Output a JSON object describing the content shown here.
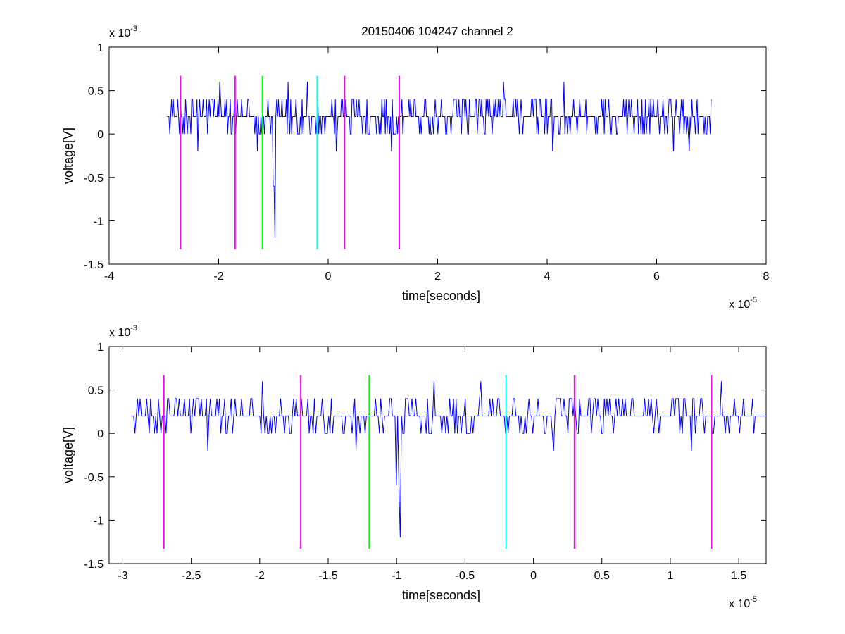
{
  "figure": {
    "title": "20150406 104247 channel 2"
  },
  "chart_data": [
    {
      "type": "line",
      "xlabel": "time[seconds]",
      "ylabel": "voltage[V]",
      "x_exponent_label": "x 10",
      "x_exponent": "-5",
      "y_exponent_label": "x 10",
      "y_exponent": "-3",
      "xlim": [
        -4e-05,
        8e-05
      ],
      "ylim": [
        -0.0015,
        0.001
      ],
      "xticks": [
        -4e-05,
        -2e-05,
        0,
        2e-05,
        4e-05,
        6e-05,
        8e-05
      ],
      "xtick_labels": [
        "-4",
        "-2",
        "0",
        "2",
        "4",
        "6",
        "8"
      ],
      "yticks": [
        -0.0015,
        -0.001,
        -0.0005,
        0,
        0.0005,
        0.001
      ],
      "ytick_labels": [
        "-1.5",
        "-1",
        "-0.5",
        "0",
        "0.5",
        "1"
      ],
      "grid": false,
      "series": [
        {
          "color": "#0000ff",
          "x_start": -2.94e-05,
          "x_end": 7e-05,
          "baseline": 0.0002,
          "quantum": 0.0002,
          "noise_levels": [
            0,
            0.0002,
            0.0004
          ],
          "features": [
            {
              "x": -2.38e-05,
              "y": -0.0002
            },
            {
              "x": -1.98e-05,
              "y": 0.0006
            },
            {
              "x": -1.3e-05,
              "y": -0.0002
            },
            {
              "x": -1e-05,
              "y": -0.0006
            },
            {
              "x": -9.75e-06,
              "y": -0.0012
            },
            {
              "x": -7.3e-06,
              "y": 0.0006
            },
            {
              "x": -3.8e-06,
              "y": 0.0006
            },
            {
              "x": 1.5e-06,
              "y": -0.0002
            },
            {
              "x": 1.15e-05,
              "y": -0.0002
            },
            {
              "x": 3.2e-05,
              "y": 0.0006
            },
            {
              "x": 4.1e-05,
              "y": -0.0002
            },
            {
              "x": 4.3e-05,
              "y": 0.0006
            },
            {
              "x": 6.3e-05,
              "y": -0.0002
            },
            {
              "x": 6.6e-05,
              "y": -0.0002
            }
          ]
        }
      ],
      "markers": [
        {
          "x": -2.7e-05,
          "y_low": -0.00133,
          "y_high": 0.00067,
          "color": "#ff00ff"
        },
        {
          "x": -1.7e-05,
          "y_low": -0.00133,
          "y_high": 0.00067,
          "color": "#ff00ff"
        },
        {
          "x": -1.2e-05,
          "y_low": -0.00133,
          "y_high": 0.00067,
          "color": "#00ff00"
        },
        {
          "x": -2e-06,
          "y_low": -0.00133,
          "y_high": 0.00067,
          "color": "#00ffff"
        },
        {
          "x": 3e-06,
          "y_low": -0.00133,
          "y_high": 0.00067,
          "color": "#ff00ff"
        },
        {
          "x": 1.3e-05,
          "y_low": -0.00133,
          "y_high": 0.00067,
          "color": "#ff00ff"
        }
      ]
    },
    {
      "type": "line",
      "xlabel": "time[seconds]",
      "ylabel": "voltage[V]",
      "x_exponent_label": "x 10",
      "x_exponent": "-5",
      "y_exponent_label": "x 10",
      "y_exponent": "-3",
      "xlim": [
        -3.1e-05,
        1.7e-05
      ],
      "ylim": [
        -0.0015,
        0.001
      ],
      "xticks": [
        -3e-05,
        -2.5e-05,
        -2e-05,
        -1.5e-05,
        -1e-05,
        -5e-06,
        0,
        5e-06,
        1e-05,
        1.5e-05
      ],
      "xtick_labels": [
        "-3",
        "-2.5",
        "-2",
        "-1.5",
        "-1",
        "-0.5",
        "0",
        "0.5",
        "1",
        "1.5"
      ],
      "yticks": [
        -0.0015,
        -0.001,
        -0.0005,
        0,
        0.0005,
        0.001
      ],
      "ytick_labels": [
        "-1.5",
        "-1",
        "-0.5",
        "0",
        "0.5",
        "1"
      ],
      "grid": false,
      "series": [
        {
          "color": "#0000ff",
          "x_start": -2.94e-05,
          "x_end": 1.7e-05,
          "baseline": 0.0002,
          "quantum": 0.0002,
          "noise_levels": [
            0,
            0.0002,
            0.0004
          ],
          "features": [
            {
              "x": -2.38e-05,
              "y": -0.0002
            },
            {
              "x": -1.98e-05,
              "y": 0.0006
            },
            {
              "x": -1.3e-05,
              "y": -0.0002
            },
            {
              "x": -1e-05,
              "y": -0.0006
            },
            {
              "x": -9.75e-06,
              "y": -0.0012
            },
            {
              "x": -7.3e-06,
              "y": 0.0006
            },
            {
              "x": -3.8e-06,
              "y": 0.0006
            },
            {
              "x": 1.5e-06,
              "y": -0.0002
            },
            {
              "x": 1.15e-05,
              "y": -0.0002
            },
            {
              "x": 1.37e-05,
              "y": 0.0006
            }
          ]
        }
      ],
      "markers": [
        {
          "x": -2.7e-05,
          "y_low": -0.00133,
          "y_high": 0.00067,
          "color": "#ff00ff"
        },
        {
          "x": -1.7e-05,
          "y_low": -0.00133,
          "y_high": 0.00067,
          "color": "#ff00ff"
        },
        {
          "x": -1.2e-05,
          "y_low": -0.00133,
          "y_high": 0.00067,
          "color": "#00ff00"
        },
        {
          "x": -2e-06,
          "y_low": -0.00133,
          "y_high": 0.00067,
          "color": "#00ffff"
        },
        {
          "x": 3e-06,
          "y_low": -0.00133,
          "y_high": 0.00067,
          "color": "#ff00ff"
        },
        {
          "x": 1.3e-05,
          "y_low": -0.00133,
          "y_high": 0.00067,
          "color": "#ff00ff"
        }
      ]
    }
  ]
}
